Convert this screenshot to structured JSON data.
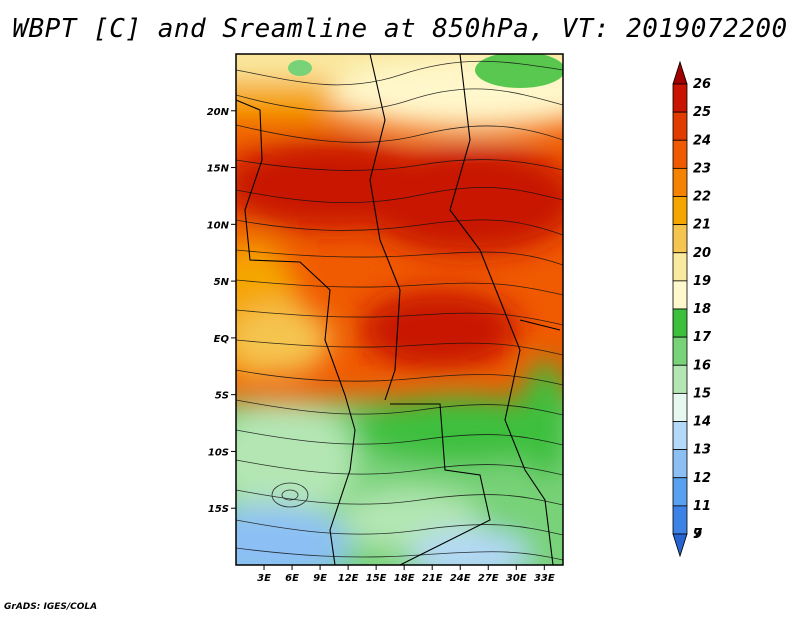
{
  "title": "WBPT [C] and Sreamline at 850hPa, VT: 2019072200",
  "credit": "GrADS: IGES/COLA",
  "map": {
    "lon_range": [
      0,
      35
    ],
    "lat_range": [
      -20,
      25
    ],
    "lon_ticks": [
      "3E",
      "6E",
      "9E",
      "12E",
      "15E",
      "18E",
      "21E",
      "24E",
      "27E",
      "30E",
      "33E"
    ],
    "lat_ticks": [
      "20N",
      "15N",
      "10N",
      "5N",
      "EQ",
      "5S",
      "10S",
      "15S"
    ],
    "fill_field": "Wet-bulb potential temperature",
    "overlay": "Streamlines"
  },
  "colorbar": {
    "levels": [
      "26",
      "25",
      "24",
      "23",
      "22",
      "21",
      "20",
      "19",
      "18",
      "17",
      "16",
      "15",
      "14",
      "13",
      "12",
      "11",
      "9",
      "7"
    ],
    "colors": [
      "#a00000",
      "#c81400",
      "#e03c00",
      "#f05a00",
      "#f58200",
      "#f5a500",
      "#f5c550",
      "#faeaa0",
      "#fff8cc",
      "#3cbf3c",
      "#78d278",
      "#b4e6b4",
      "#e6f8f0",
      "#b4d8f8",
      "#8cc0f5",
      "#5aa0f0",
      "#3c82e6",
      "#2864d2"
    ]
  }
}
